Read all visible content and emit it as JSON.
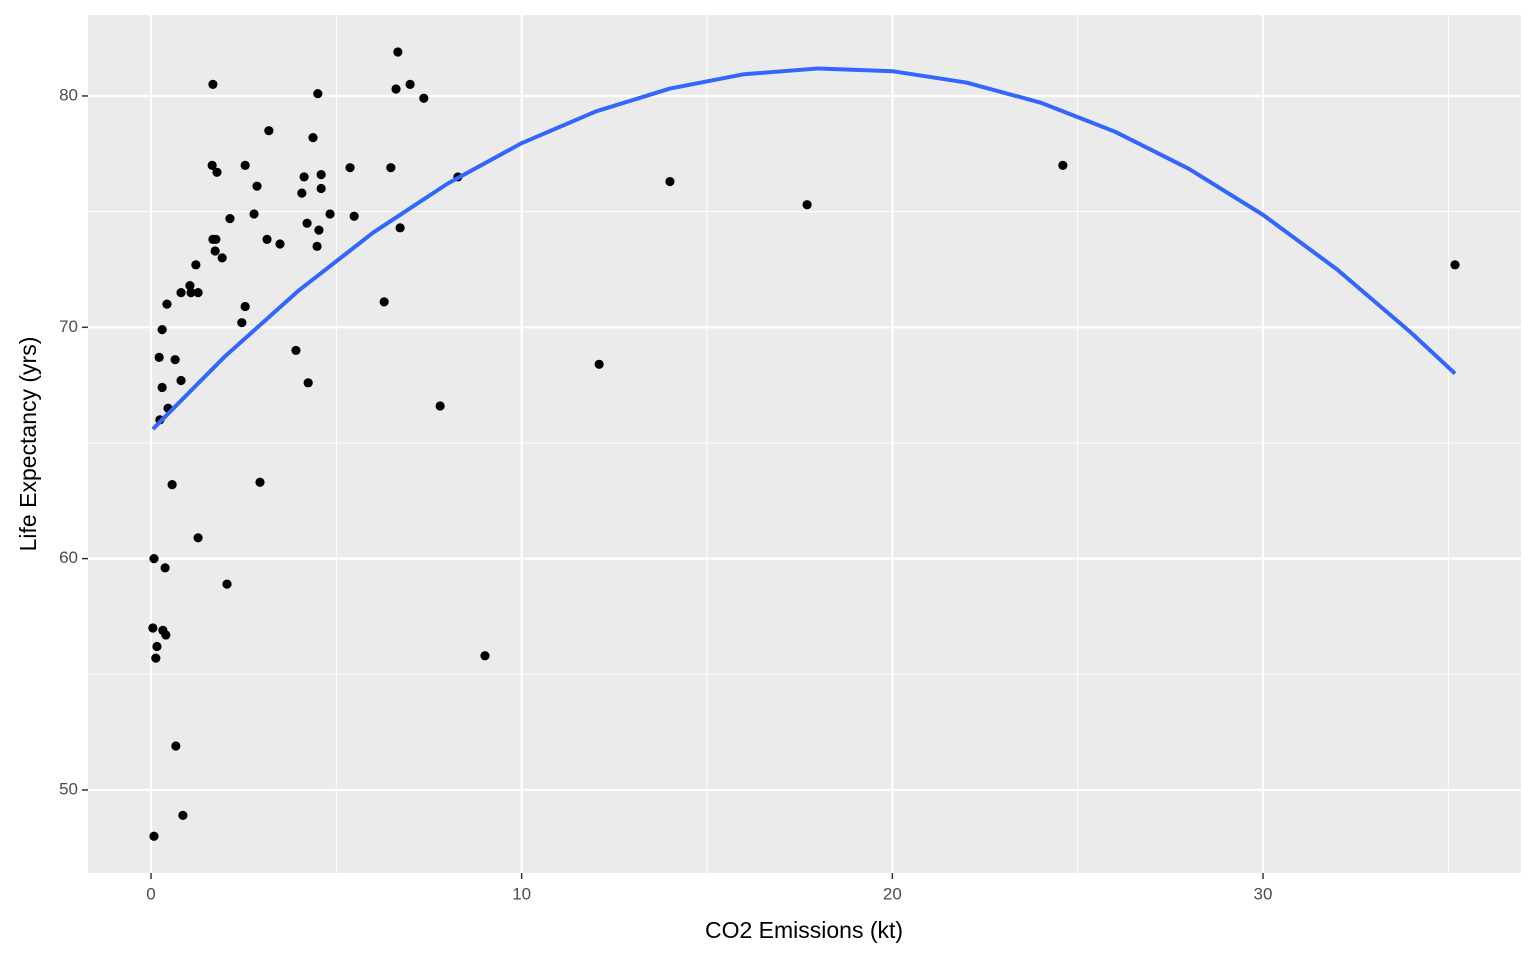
{
  "chart_data": {
    "type": "scatter",
    "x_label": "CO2 Emissions (kt)",
    "y_label": "Life Expectancy (yrs)",
    "xlim": [
      -1.7,
      36.96
    ],
    "ylim": [
      46.41,
      83.5
    ],
    "xticks": [
      0,
      10,
      20,
      30
    ],
    "yticks": [
      50,
      60,
      70,
      80
    ],
    "x_minor_grid": [
      5,
      15,
      25,
      35
    ],
    "y_minor_grid": [
      55,
      65,
      75
    ],
    "grid": true,
    "series": [
      {
        "type": "scatter",
        "color": "#000000",
        "x": [
          0.08,
          0.86,
          0.67,
          0.13,
          0.16,
          0.05,
          0.32,
          0.4,
          0.38,
          0.08,
          2.05,
          1.27,
          0.57,
          2.94,
          9.01,
          7.8,
          12.09,
          6.29,
          3.91,
          4.24,
          0.24,
          0.46,
          0.81,
          0.65,
          0.22,
          0.3,
          0.3,
          0.43,
          0.81,
          1.05,
          1.08,
          1.27,
          1.21,
          1.92,
          1.73,
          1.75,
          1.67,
          2.13,
          2.45,
          2.54,
          3.13,
          3.48,
          2.78,
          2.86,
          2.54,
          1.65,
          1.78,
          1.67,
          3.18,
          4.07,
          4.13,
          4.21,
          4.48,
          4.53,
          4.37,
          4.5,
          4.59,
          4.59,
          4.83,
          5.48,
          5.37,
          6.47,
          6.72,
          6.61,
          6.66,
          6.99,
          7.36,
          8.28,
          14.0,
          17.7,
          24.6,
          35.18
        ],
        "values": [
          48.0,
          48.9,
          51.9,
          55.7,
          56.2,
          57.0,
          56.9,
          56.7,
          59.6,
          60.0,
          58.9,
          60.9,
          63.2,
          63.3,
          55.8,
          66.6,
          68.4,
          71.1,
          69.0,
          67.6,
          66.0,
          66.5,
          67.7,
          68.6,
          68.7,
          67.4,
          69.9,
          71.0,
          71.5,
          71.8,
          71.5,
          71.5,
          72.7,
          73.0,
          73.3,
          73.8,
          73.8,
          74.7,
          70.2,
          70.9,
          73.8,
          73.6,
          74.9,
          76.1,
          77.0,
          77.0,
          76.7,
          80.5,
          78.5,
          75.8,
          76.5,
          74.5,
          73.5,
          74.2,
          78.2,
          80.1,
          76.6,
          76.0,
          74.9,
          74.8,
          76.9,
          76.9,
          74.3,
          80.3,
          81.9,
          80.5,
          79.9,
          76.5,
          76.3,
          75.3,
          77.0,
          72.7
        ]
      },
      {
        "type": "line",
        "color": "#3366ff",
        "x": [
          0.05,
          2,
          4,
          6,
          8,
          10,
          12,
          14,
          16,
          18,
          20,
          22,
          24,
          26,
          28,
          30,
          32,
          34,
          35.18
        ],
        "values": [
          65.6,
          68.75,
          71.61,
          74.1,
          76.21,
          77.96,
          79.33,
          80.32,
          80.94,
          81.19,
          81.07,
          80.58,
          79.71,
          78.46,
          76.85,
          74.86,
          72.5,
          69.76,
          68.0
        ]
      }
    ]
  }
}
